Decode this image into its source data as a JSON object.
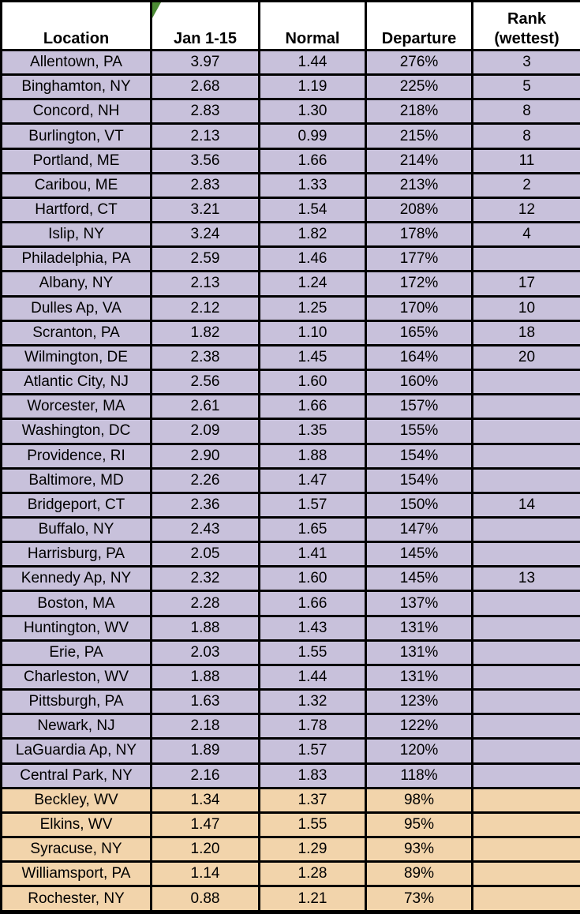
{
  "table": {
    "columns": [
      {
        "key": "location",
        "label": "Location"
      },
      {
        "key": "jan",
        "label": "Jan 1-15"
      },
      {
        "key": "normal",
        "label": "Normal"
      },
      {
        "key": "departure",
        "label": "Departure"
      },
      {
        "key": "rank",
        "label": "Rank (wettest)",
        "label_line1": "Rank",
        "label_line2": "(wettest)"
      }
    ],
    "icons": {
      "jan_header_flag": "excel-error-flag-icon"
    },
    "colors": {
      "above_normal_row": "#C8C1DB",
      "below_normal_row": "#F2D4AB",
      "header_bg": "#FFFFFF",
      "border": "#000000",
      "flag_green": "#4C8C35"
    },
    "rows": [
      {
        "location": "Allentown, PA",
        "jan": "3.97",
        "normal": "1.44",
        "departure": "276%",
        "rank": "3",
        "group": "above-normal"
      },
      {
        "location": "Binghamton, NY",
        "jan": "2.68",
        "normal": "1.19",
        "departure": "225%",
        "rank": "5",
        "group": "above-normal"
      },
      {
        "location": "Concord, NH",
        "jan": "2.83",
        "normal": "1.30",
        "departure": "218%",
        "rank": "8",
        "group": "above-normal"
      },
      {
        "location": "Burlington, VT",
        "jan": "2.13",
        "normal": "0.99",
        "departure": "215%",
        "rank": "8",
        "group": "above-normal"
      },
      {
        "location": "Portland, ME",
        "jan": "3.56",
        "normal": "1.66",
        "departure": "214%",
        "rank": "11",
        "group": "above-normal"
      },
      {
        "location": "Caribou, ME",
        "jan": "2.83",
        "normal": "1.33",
        "departure": "213%",
        "rank": "2",
        "group": "above-normal"
      },
      {
        "location": "Hartford, CT",
        "jan": "3.21",
        "normal": "1.54",
        "departure": "208%",
        "rank": "12",
        "group": "above-normal"
      },
      {
        "location": "Islip, NY",
        "jan": "3.24",
        "normal": "1.82",
        "departure": "178%",
        "rank": "4",
        "group": "above-normal"
      },
      {
        "location": "Philadelphia, PA",
        "jan": "2.59",
        "normal": "1.46",
        "departure": "177%",
        "rank": "",
        "group": "above-normal"
      },
      {
        "location": "Albany, NY",
        "jan": "2.13",
        "normal": "1.24",
        "departure": "172%",
        "rank": "17",
        "group": "above-normal"
      },
      {
        "location": "Dulles Ap, VA",
        "jan": "2.12",
        "normal": "1.25",
        "departure": "170%",
        "rank": "10",
        "group": "above-normal"
      },
      {
        "location": "Scranton, PA",
        "jan": "1.82",
        "normal": "1.10",
        "departure": "165%",
        "rank": "18",
        "group": "above-normal"
      },
      {
        "location": "Wilmington, DE",
        "jan": "2.38",
        "normal": "1.45",
        "departure": "164%",
        "rank": "20",
        "group": "above-normal"
      },
      {
        "location": "Atlantic City, NJ",
        "jan": "2.56",
        "normal": "1.60",
        "departure": "160%",
        "rank": "",
        "group": "above-normal"
      },
      {
        "location": "Worcester, MA",
        "jan": "2.61",
        "normal": "1.66",
        "departure": "157%",
        "rank": "",
        "group": "above-normal"
      },
      {
        "location": "Washington, DC",
        "jan": "2.09",
        "normal": "1.35",
        "departure": "155%",
        "rank": "",
        "group": "above-normal"
      },
      {
        "location": "Providence, RI",
        "jan": "2.90",
        "normal": "1.88",
        "departure": "154%",
        "rank": "",
        "group": "above-normal"
      },
      {
        "location": "Baltimore, MD",
        "jan": "2.26",
        "normal": "1.47",
        "departure": "154%",
        "rank": "",
        "group": "above-normal"
      },
      {
        "location": "Bridgeport, CT",
        "jan": "2.36",
        "normal": "1.57",
        "departure": "150%",
        "rank": "14",
        "group": "above-normal"
      },
      {
        "location": "Buffalo, NY",
        "jan": "2.43",
        "normal": "1.65",
        "departure": "147%",
        "rank": "",
        "group": "above-normal"
      },
      {
        "location": "Harrisburg, PA",
        "jan": "2.05",
        "normal": "1.41",
        "departure": "145%",
        "rank": "",
        "group": "above-normal"
      },
      {
        "location": "Kennedy Ap, NY",
        "jan": "2.32",
        "normal": "1.60",
        "departure": "145%",
        "rank": "13",
        "group": "above-normal"
      },
      {
        "location": "Boston, MA",
        "jan": "2.28",
        "normal": "1.66",
        "departure": "137%",
        "rank": "",
        "group": "above-normal"
      },
      {
        "location": "Huntington, WV",
        "jan": "1.88",
        "normal": "1.43",
        "departure": "131%",
        "rank": "",
        "group": "above-normal"
      },
      {
        "location": "Erie, PA",
        "jan": "2.03",
        "normal": "1.55",
        "departure": "131%",
        "rank": "",
        "group": "above-normal"
      },
      {
        "location": "Charleston, WV",
        "jan": "1.88",
        "normal": "1.44",
        "departure": "131%",
        "rank": "",
        "group": "above-normal"
      },
      {
        "location": "Pittsburgh, PA",
        "jan": "1.63",
        "normal": "1.32",
        "departure": "123%",
        "rank": "",
        "group": "above-normal"
      },
      {
        "location": "Newark, NJ",
        "jan": "2.18",
        "normal": "1.78",
        "departure": "122%",
        "rank": "",
        "group": "above-normal"
      },
      {
        "location": "LaGuardia Ap, NY",
        "jan": "1.89",
        "normal": "1.57",
        "departure": "120%",
        "rank": "",
        "group": "above-normal"
      },
      {
        "location": "Central Park, NY",
        "jan": "2.16",
        "normal": "1.83",
        "departure": "118%",
        "rank": "",
        "group": "above-normal"
      },
      {
        "location": "Beckley, WV",
        "jan": "1.34",
        "normal": "1.37",
        "departure": "98%",
        "rank": "",
        "group": "below-normal"
      },
      {
        "location": "Elkins, WV",
        "jan": "1.47",
        "normal": "1.55",
        "departure": "95%",
        "rank": "",
        "group": "below-normal"
      },
      {
        "location": "Syracuse, NY",
        "jan": "1.20",
        "normal": "1.29",
        "departure": "93%",
        "rank": "",
        "group": "below-normal"
      },
      {
        "location": "Williamsport, PA",
        "jan": "1.14",
        "normal": "1.28",
        "departure": "89%",
        "rank": "",
        "group": "below-normal"
      },
      {
        "location": "Rochester, NY",
        "jan": "0.88",
        "normal": "1.21",
        "departure": "73%",
        "rank": "",
        "group": "below-normal"
      }
    ]
  }
}
